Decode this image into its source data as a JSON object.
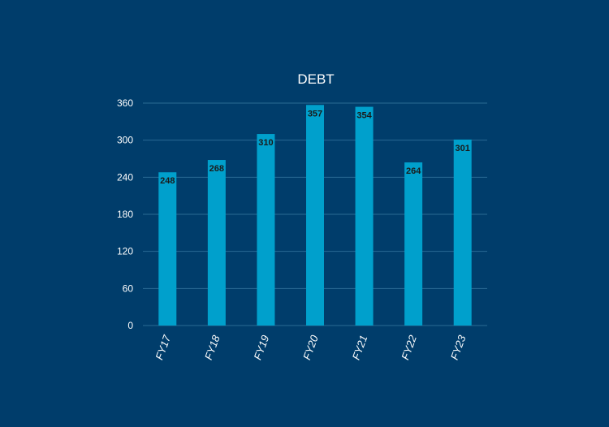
{
  "chart_data": {
    "type": "bar",
    "title": "DEBT",
    "categories": [
      "FY17",
      "FY18",
      "FY19",
      "FY20",
      "FY21",
      "FY22",
      "FY23"
    ],
    "values": [
      248,
      268,
      310,
      357,
      354,
      264,
      301
    ],
    "data_labels": [
      "248",
      "268",
      "310",
      "357",
      "354",
      "264",
      "301"
    ],
    "xlabel": "",
    "ylabel": "",
    "ylim": [
      0,
      360
    ],
    "yticks": [
      0,
      60,
      120,
      180,
      240,
      300,
      360
    ],
    "ytick_labels": [
      "0",
      "60",
      "120",
      "180",
      "240",
      "300",
      "360"
    ],
    "grid": true,
    "legend": "none",
    "colors": {
      "background": "#003d6b",
      "bar": "#00a0cc",
      "grid": "#2a6a93",
      "text": "#ffffff",
      "data_label": "#1a1a1a"
    }
  }
}
